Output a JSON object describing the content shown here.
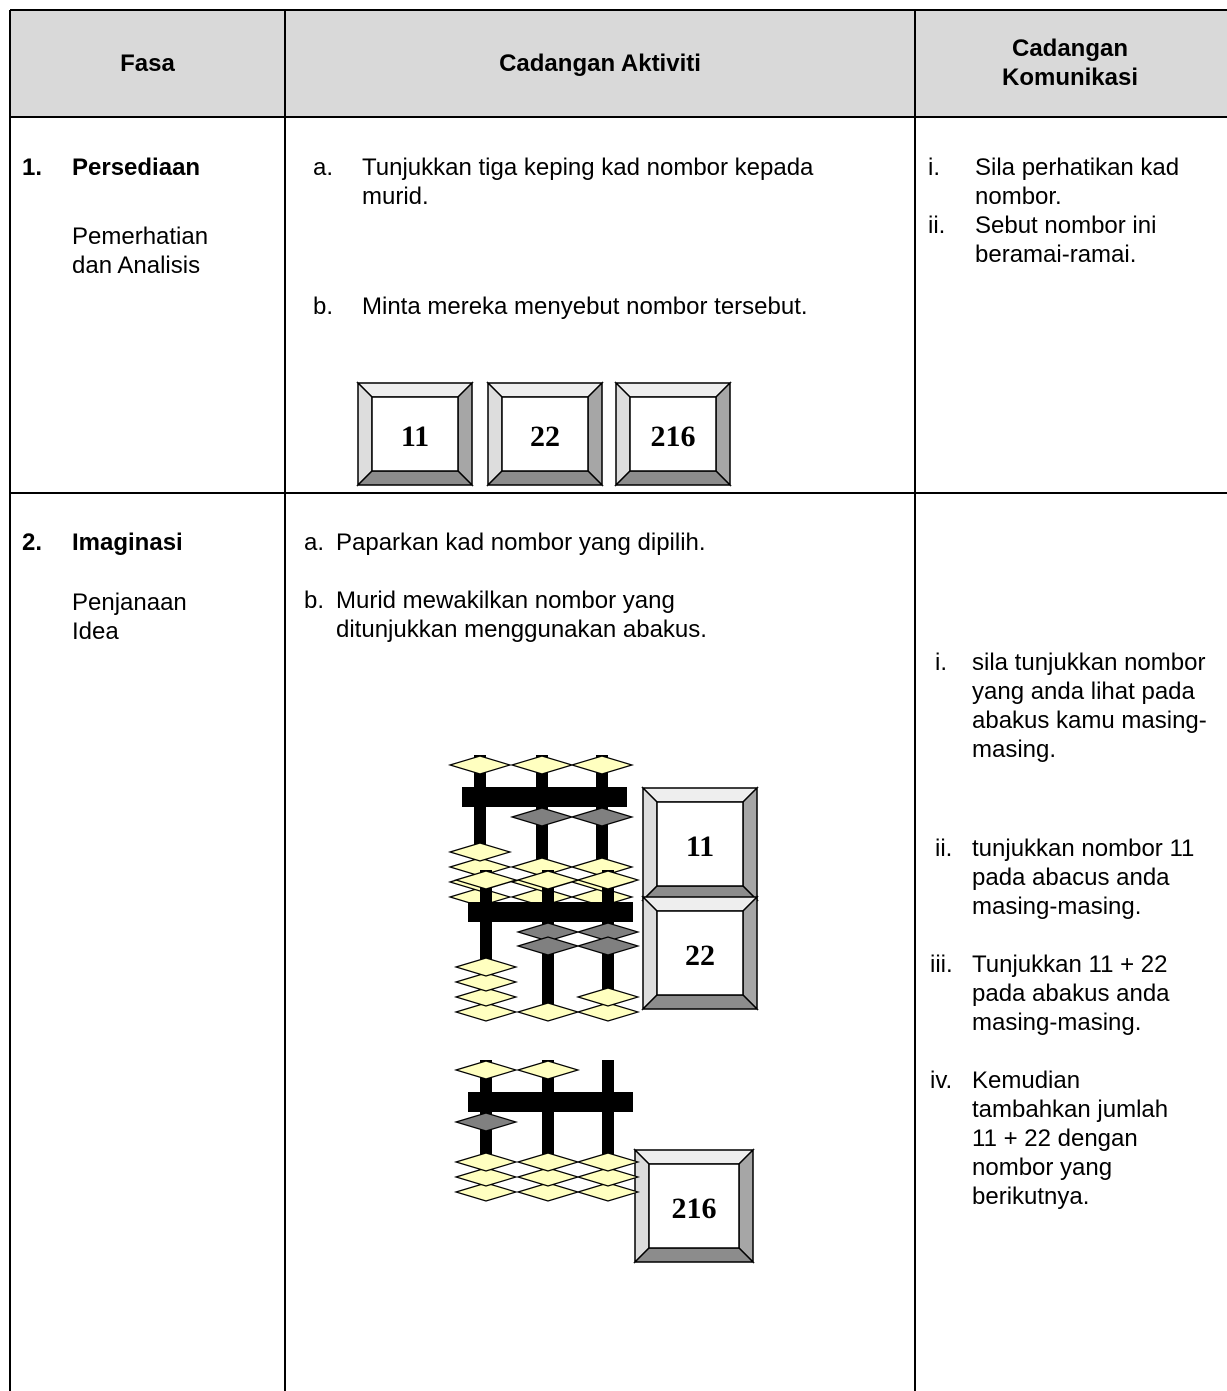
{
  "header": {
    "columns": [
      "Fasa",
      "Cadangan Aktiviti",
      "Cadangan Komunikasi"
    ]
  },
  "rows": [
    {
      "phase": {
        "number": "1.",
        "title": "Persediaan",
        "description": "Pemerhatian dan Analisis"
      },
      "activities": [
        {
          "marker": "a.",
          "text": "Tunjukkan tiga keping kad nombor kepada murid."
        },
        {
          "marker": "b.",
          "text": "Minta mereka menyebut nombor tersebut."
        }
      ],
      "cards": [
        "11",
        "22",
        "216"
      ],
      "communications": [
        {
          "marker": "i.",
          "text": "Sila perhatikan kad nombor."
        },
        {
          "marker": "ii.",
          "text": "Sebut nombor ini beramai-ramai."
        }
      ]
    },
    {
      "phase": {
        "number": "2.",
        "title": "Imaginasi",
        "description": "Penjanaan Idea"
      },
      "activities": [
        {
          "marker": "a.",
          "text": "Paparkan kad nombor yang dipilih."
        },
        {
          "marker": "b.",
          "text": "Murid mewakilkan nombor yang ditunjukkan menggunakan abakus."
        }
      ],
      "cards": [
        "11",
        "22",
        "216"
      ],
      "communications": [
        {
          "marker": "i.",
          "text": "sila tunjukkan nombor yang anda lihat pada abakus kamu masing-masing."
        },
        {
          "marker": "ii.",
          "text": "tunjukkan nombor 11 pada abacus anda masing-masing."
        },
        {
          "marker": "iii.",
          "text": "Tunjukkan 11 + 22 pada abakus anda masing-masing."
        },
        {
          "marker": "iv.",
          "text": "Kemudian tambahkan jumlah 11 + 22 dengan nombor yang berikutnya."
        }
      ]
    }
  ]
}
